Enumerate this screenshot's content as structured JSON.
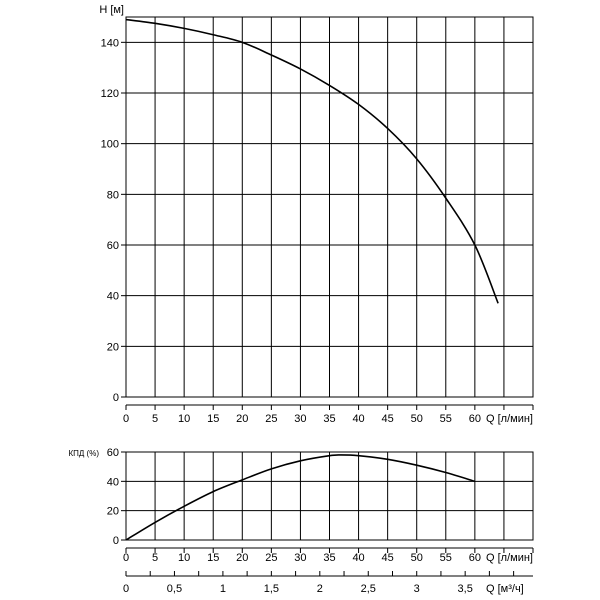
{
  "chart_data": [
    {
      "type": "line",
      "ylabel": "H [м]",
      "xlabel": "Q [л/мин]",
      "xlim": [
        0,
        70
      ],
      "ylim": [
        0,
        150
      ],
      "x_ticks": [
        "0",
        "5",
        "10",
        "15",
        "20",
        "25",
        "30",
        "35",
        "40",
        "45",
        "50",
        "55",
        "60"
      ],
      "y_ticks": [
        "0",
        "20",
        "40",
        "60",
        "80",
        "100",
        "120",
        "140"
      ],
      "grid": true,
      "series": [
        {
          "x": [
            0,
            5,
            10,
            15,
            20,
            25,
            30,
            35,
            40,
            45,
            50,
            55,
            60,
            64
          ],
          "y": [
            149,
            147.5,
            145.5,
            143,
            140,
            135,
            129.5,
            123,
            115.5,
            106,
            94,
            78.5,
            60,
            37
          ]
        }
      ]
    },
    {
      "type": "line",
      "ylabel": "КПД (%)",
      "xlabel": "Q [л/мин]",
      "xlim": [
        0,
        70
      ],
      "ylim": [
        0,
        60
      ],
      "x_ticks": [
        "0",
        "5",
        "10",
        "15",
        "20",
        "25",
        "30",
        "35",
        "40",
        "45",
        "50",
        "55",
        "60"
      ],
      "y_ticks": [
        "0",
        "20",
        "40",
        "60"
      ],
      "grid": true,
      "series": [
        {
          "x": [
            0,
            5,
            10,
            15,
            20,
            25,
            30,
            35,
            37,
            40,
            45,
            50,
            55,
            60
          ],
          "y": [
            0,
            12,
            23,
            33,
            41,
            48.5,
            54,
            57.5,
            58,
            57.5,
            55,
            51,
            46,
            40
          ]
        }
      ]
    },
    {
      "type": "axis",
      "xlabel": "Q [м³/ч]",
      "x_ticks": [
        "0",
        "0,5",
        "1",
        "1,5",
        "2",
        "2,5",
        "3",
        "3,5"
      ],
      "x_values": [
        0,
        0.5,
        1,
        1.5,
        2,
        2.5,
        3,
        3.5
      ]
    }
  ]
}
